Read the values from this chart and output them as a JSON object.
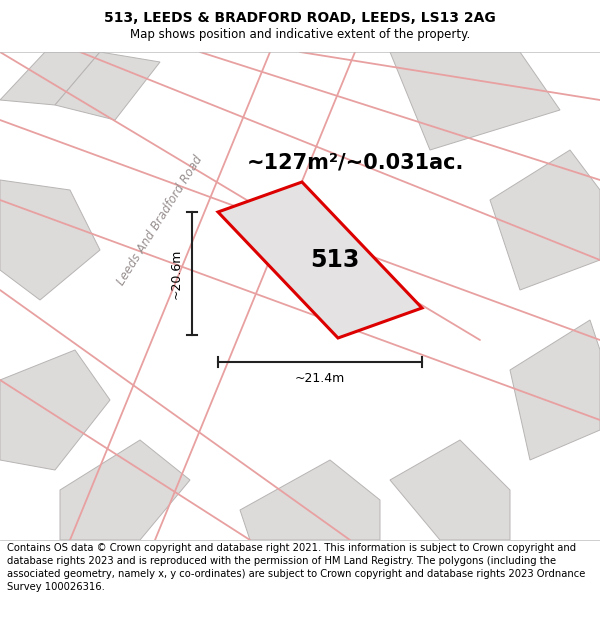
{
  "title": "513, LEEDS & BRADFORD ROAD, LEEDS, LS13 2AG",
  "subtitle": "Map shows position and indicative extent of the property.",
  "area_label": "~127m²/~0.031ac.",
  "plot_number": "513",
  "dim_vertical": "~20.6m",
  "dim_horizontal": "~21.4m",
  "road_label": "Leeds And Bradford Road",
  "footer": "Contains OS data © Crown copyright and database right 2021. This information is subject to Crown copyright and database rights 2023 and is reproduced with the permission of HM Land Registry. The polygons (including the associated geometry, namely x, y co-ordinates) are subject to Crown copyright and database rights 2023 Ordnance Survey 100026316.",
  "map_bg": "#f0eeee",
  "plot_fill": "#e4e2e2",
  "plot_edge": "#dd0000",
  "neighbor_fill": "#dddada",
  "neighbor_edge": "#b8b4b4",
  "road_line_color": "#e8a0a0",
  "dim_color": "#222222",
  "title_fontsize": 10,
  "subtitle_fontsize": 8.5,
  "footer_fontsize": 7.2,
  "area_fontsize": 15,
  "plot_num_fontsize": 17,
  "road_label_fontsize": 8.5
}
